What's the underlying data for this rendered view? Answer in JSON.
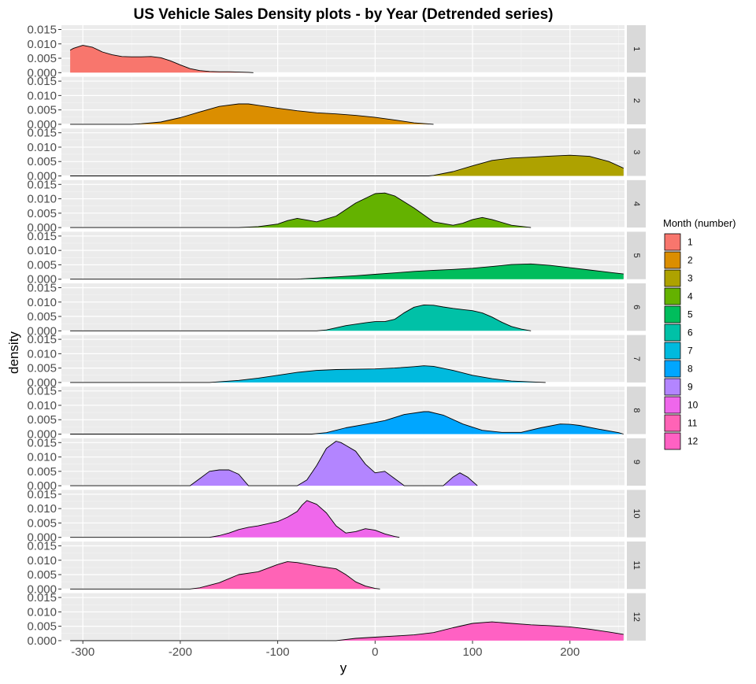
{
  "chart_data": {
    "type": "area",
    "subtype": "faceted density plots",
    "title": "US Vehicle Sales Density plots - by Year (Detrended series)",
    "xlabel": "y",
    "ylabel": "density",
    "xlim": [
      -322,
      256
    ],
    "ylim": [
      0,
      0.0165
    ],
    "x_ticks": [
      -300,
      -200,
      -100,
      0,
      100,
      200
    ],
    "x_tick_labels": [
      "-300",
      "-200",
      "-100",
      "0",
      "100",
      "200"
    ],
    "y_ticks": [
      0,
      0.005,
      0.01,
      0.015
    ],
    "y_tick_labels": [
      "0.000",
      "0.005",
      "0.010",
      "0.015"
    ],
    "grid": true,
    "legend": {
      "title": "Month (number)",
      "position": "right",
      "entries": [
        "1",
        "2",
        "3",
        "4",
        "5",
        "6",
        "7",
        "8",
        "9",
        "10",
        "11",
        "12"
      ]
    },
    "facet_labels": [
      "1",
      "2",
      "3",
      "4",
      "5",
      "6",
      "7",
      "8",
      "9",
      "10",
      "11",
      "12"
    ],
    "series": [
      {
        "name": "1",
        "color": "#F8766D",
        "x": [
          -313,
          -310,
          -300,
          -290,
          -280,
          -270,
          -260,
          -250,
          -240,
          -230,
          -220,
          -210,
          -200,
          -190,
          -180,
          -170,
          -160,
          -150,
          -140,
          -130,
          -125
        ],
        "y": [
          0.0078,
          0.0084,
          0.0095,
          0.0088,
          0.0072,
          0.0062,
          0.0056,
          0.0055,
          0.0055,
          0.0056,
          0.0052,
          0.0041,
          0.0027,
          0.0014,
          0.0007,
          0.0004,
          0.0003,
          0.0003,
          0.0002,
          0.0001,
          0
        ]
      },
      {
        "name": "2",
        "color": "#DB8E00",
        "x": [
          -313,
          -250,
          -240,
          -220,
          -200,
          -180,
          -160,
          -140,
          -130,
          -120,
          -100,
          -80,
          -60,
          -40,
          -20,
          0,
          20,
          40,
          60
        ],
        "y": [
          0,
          0,
          0.0002,
          0.0008,
          0.0023,
          0.0043,
          0.0062,
          0.0071,
          0.0071,
          0.0066,
          0.0056,
          0.0047,
          0.004,
          0.0036,
          0.0031,
          0.0024,
          0.0015,
          0.0005,
          0
        ]
      },
      {
        "name": "3",
        "color": "#AEA200",
        "x": [
          -313,
          55,
          60,
          80,
          100,
          120,
          140,
          160,
          180,
          200,
          220,
          240,
          255
        ],
        "y": [
          0,
          0,
          0.0002,
          0.0015,
          0.0035,
          0.0054,
          0.0062,
          0.0065,
          0.0069,
          0.0072,
          0.0068,
          0.005,
          0.0027
        ]
      },
      {
        "name": "4",
        "color": "#64B200",
        "x": [
          -313,
          -140,
          -120,
          -100,
          -90,
          -80,
          -70,
          -60,
          -40,
          -20,
          0,
          10,
          20,
          40,
          60,
          80,
          90,
          100,
          110,
          120,
          140,
          160
        ],
        "y": [
          0,
          0,
          0.0003,
          0.0012,
          0.0024,
          0.0032,
          0.0026,
          0.002,
          0.004,
          0.0085,
          0.0118,
          0.012,
          0.011,
          0.0068,
          0.002,
          0.0008,
          0.0015,
          0.0028,
          0.0035,
          0.0028,
          0.0008,
          0
        ]
      },
      {
        "name": "5",
        "color": "#00BD5C",
        "x": [
          -313,
          -80,
          -60,
          -40,
          -20,
          0,
          20,
          40,
          60,
          80,
          100,
          120,
          140,
          160,
          180,
          200,
          220,
          240,
          255
        ],
        "y": [
          0,
          0,
          0.0004,
          0.0008,
          0.0012,
          0.0017,
          0.0022,
          0.0027,
          0.0031,
          0.0034,
          0.0038,
          0.0044,
          0.0051,
          0.0053,
          0.0048,
          0.004,
          0.0032,
          0.0024,
          0.0018
        ]
      },
      {
        "name": "6",
        "color": "#00C1A7",
        "x": [
          -313,
          -60,
          -50,
          -30,
          -10,
          0,
          10,
          20,
          30,
          40,
          50,
          60,
          70,
          80,
          90,
          100,
          110,
          120,
          130,
          140,
          150,
          160
        ],
        "y": [
          0,
          0,
          0.0003,
          0.0018,
          0.0028,
          0.0032,
          0.0032,
          0.004,
          0.0063,
          0.0082,
          0.009,
          0.0089,
          0.0083,
          0.0078,
          0.0074,
          0.007,
          0.0062,
          0.0048,
          0.003,
          0.0015,
          0.0006,
          0
        ]
      },
      {
        "name": "7",
        "color": "#00BADE",
        "x": [
          -313,
          -170,
          -140,
          -120,
          -100,
          -80,
          -60,
          -40,
          -20,
          0,
          20,
          40,
          50,
          60,
          80,
          100,
          120,
          140,
          160,
          175
        ],
        "y": [
          0,
          0,
          0.0007,
          0.0015,
          0.0025,
          0.0035,
          0.0042,
          0.0045,
          0.0046,
          0.0047,
          0.005,
          0.0055,
          0.0058,
          0.0056,
          0.0042,
          0.0025,
          0.0013,
          0.0005,
          0.0002,
          0
        ]
      },
      {
        "name": "8",
        "color": "#00A6FF",
        "x": [
          -313,
          -65,
          -50,
          -30,
          -10,
          10,
          30,
          50,
          55,
          70,
          90,
          110,
          130,
          150,
          170,
          190,
          200,
          210,
          230,
          250,
          255
        ],
        "y": [
          0,
          0,
          0.0005,
          0.0022,
          0.0034,
          0.0047,
          0.0068,
          0.0078,
          0.0078,
          0.0066,
          0.0035,
          0.0013,
          0.0006,
          0.0006,
          0.0022,
          0.0035,
          0.0034,
          0.003,
          0.0017,
          0.0005,
          0
        ]
      },
      {
        "name": "9",
        "color": "#B385FF",
        "x": [
          -313,
          -190,
          -180,
          -170,
          -160,
          -150,
          -140,
          -130,
          -80,
          -70,
          -60,
          -50,
          -40,
          -35,
          -30,
          -20,
          -10,
          0,
          10,
          20,
          30,
          70,
          80,
          87,
          95,
          105
        ],
        "y": [
          0,
          0,
          0.0025,
          0.005,
          0.0055,
          0.0055,
          0.004,
          0,
          0,
          0.002,
          0.007,
          0.013,
          0.0155,
          0.015,
          0.014,
          0.012,
          0.0075,
          0.0045,
          0.005,
          0.0025,
          0,
          0,
          0.003,
          0.0045,
          0.003,
          0
        ]
      },
      {
        "name": "10",
        "color": "#EF67EB",
        "x": [
          -313,
          -170,
          -160,
          -150,
          -140,
          -130,
          -120,
          -100,
          -90,
          -80,
          -75,
          -70,
          -60,
          -50,
          -40,
          -30,
          -20,
          -10,
          0,
          10,
          20,
          25
        ],
        "y": [
          0,
          0,
          0.0006,
          0.0015,
          0.0027,
          0.0035,
          0.004,
          0.0055,
          0.007,
          0.009,
          0.0112,
          0.0128,
          0.0115,
          0.0085,
          0.004,
          0.0015,
          0.002,
          0.003,
          0.0025,
          0.0012,
          0.0003,
          0
        ]
      },
      {
        "name": "11",
        "color": "#FF63B6",
        "x": [
          -313,
          -190,
          -180,
          -160,
          -140,
          -120,
          -100,
          -90,
          -80,
          -60,
          -40,
          -30,
          -20,
          -10,
          0,
          5
        ],
        "y": [
          0,
          0,
          0.0004,
          0.0022,
          0.005,
          0.006,
          0.0085,
          0.0095,
          0.0092,
          0.008,
          0.007,
          0.005,
          0.0025,
          0.001,
          0.0002,
          0
        ]
      },
      {
        "name": "12",
        "color": "#FF61C3",
        "x": [
          -313,
          -40,
          -20,
          0,
          20,
          40,
          60,
          80,
          100,
          120,
          140,
          160,
          180,
          200,
          220,
          240,
          255
        ],
        "y": [
          0,
          0,
          0.0008,
          0.0012,
          0.0016,
          0.002,
          0.0028,
          0.0045,
          0.006,
          0.0065,
          0.006,
          0.0055,
          0.0052,
          0.0048,
          0.004,
          0.003,
          0.0022
        ]
      }
    ]
  }
}
